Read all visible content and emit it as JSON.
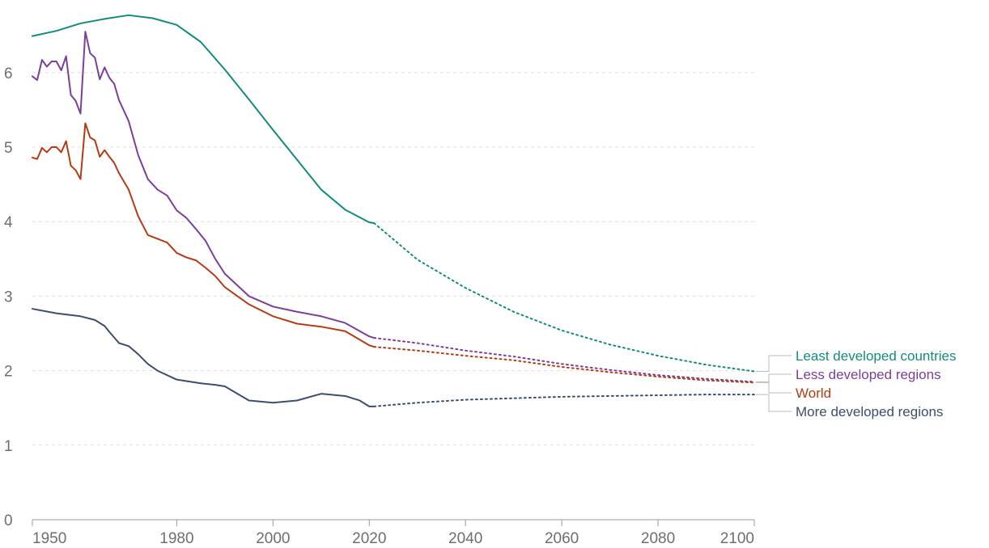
{
  "chart_data": {
    "type": "line",
    "xlim": [
      1950,
      2100
    ],
    "ylim": [
      0,
      6.5
    ],
    "x_ticks": [
      "1950",
      "1980",
      "2000",
      "2020",
      "2040",
      "2060",
      "2080",
      "2100"
    ],
    "y_ticks": [
      "0",
      "1",
      "2",
      "3",
      "4",
      "5",
      "6"
    ],
    "grid": "horizontal dashed",
    "legend_placement": "right, end-of-line labels",
    "projection_start": 2021,
    "series": [
      {
        "name": "Least developed countries",
        "color": "#158a7c",
        "x": [
          1950,
          1955,
          1960,
          1965,
          1970,
          1975,
          1980,
          1985,
          1990,
          1995,
          2000,
          2005,
          2010,
          2015,
          2020,
          2021,
          2030,
          2040,
          2050,
          2060,
          2070,
          2080,
          2090,
          2100
        ],
        "y": [
          6.49,
          6.56,
          6.66,
          6.72,
          6.77,
          6.73,
          6.64,
          6.41,
          6.04,
          5.64,
          5.23,
          4.83,
          4.43,
          4.16,
          3.99,
          3.98,
          3.49,
          3.11,
          2.79,
          2.54,
          2.35,
          2.2,
          2.08,
          1.99
        ]
      },
      {
        "name": "Less developed regions",
        "color": "#7b3f98",
        "x": [
          1950,
          1951,
          1952,
          1953,
          1954,
          1955,
          1956,
          1957,
          1958,
          1959,
          1960,
          1961,
          1962,
          1963,
          1964,
          1965,
          1966,
          1967,
          1968,
          1970,
          1972,
          1974,
          1976,
          1978,
          1980,
          1982,
          1984,
          1986,
          1988,
          1990,
          1995,
          2000,
          2005,
          2010,
          2015,
          2020,
          2021,
          2030,
          2040,
          2050,
          2060,
          2070,
          2080,
          2090,
          2100
        ],
        "y": [
          5.95,
          5.9,
          6.17,
          6.08,
          6.15,
          6.15,
          6.03,
          6.22,
          5.7,
          5.62,
          5.45,
          6.55,
          6.26,
          6.2,
          5.91,
          6.07,
          5.93,
          5.85,
          5.63,
          5.35,
          4.89,
          4.57,
          4.43,
          4.35,
          4.15,
          4.05,
          3.9,
          3.74,
          3.5,
          3.3,
          3.0,
          2.86,
          2.79,
          2.73,
          2.64,
          2.46,
          2.44,
          2.37,
          2.27,
          2.19,
          2.09,
          2.01,
          1.94,
          1.89,
          1.85
        ]
      },
      {
        "name": "World",
        "color": "#b33b16",
        "x": [
          1950,
          1951,
          1952,
          1953,
          1954,
          1955,
          1956,
          1957,
          1958,
          1959,
          1960,
          1961,
          1962,
          1963,
          1964,
          1965,
          1966,
          1967,
          1968,
          1970,
          1972,
          1974,
          1976,
          1978,
          1980,
          1982,
          1984,
          1986,
          1988,
          1990,
          1995,
          2000,
          2005,
          2010,
          2015,
          2020,
          2021,
          2030,
          2040,
          2050,
          2060,
          2070,
          2080,
          2090,
          2100
        ],
        "y": [
          4.86,
          4.84,
          4.99,
          4.93,
          5.0,
          5.0,
          4.93,
          5.08,
          4.75,
          4.69,
          4.57,
          5.32,
          5.13,
          5.09,
          4.87,
          4.96,
          4.87,
          4.79,
          4.65,
          4.43,
          4.07,
          3.82,
          3.77,
          3.72,
          3.58,
          3.52,
          3.48,
          3.38,
          3.27,
          3.12,
          2.89,
          2.73,
          2.63,
          2.59,
          2.53,
          2.34,
          2.32,
          2.27,
          2.2,
          2.14,
          2.05,
          1.98,
          1.92,
          1.87,
          1.84
        ]
      },
      {
        "name": "More developed regions",
        "color": "#3c4e6b",
        "x": [
          1950,
          1955,
          1960,
          1963,
          1965,
          1966,
          1968,
          1970,
          1972,
          1974,
          1976,
          1980,
          1985,
          1988,
          1990,
          1995,
          2000,
          2005,
          2010,
          2015,
          2018,
          2020,
          2021,
          2030,
          2040,
          2050,
          2060,
          2070,
          2080,
          2090,
          2100
        ],
        "y": [
          2.83,
          2.77,
          2.73,
          2.68,
          2.6,
          2.52,
          2.37,
          2.33,
          2.22,
          2.09,
          2.0,
          1.88,
          1.83,
          1.81,
          1.79,
          1.6,
          1.57,
          1.6,
          1.69,
          1.66,
          1.6,
          1.52,
          1.52,
          1.57,
          1.61,
          1.63,
          1.65,
          1.66,
          1.67,
          1.68,
          1.68
        ]
      }
    ]
  }
}
